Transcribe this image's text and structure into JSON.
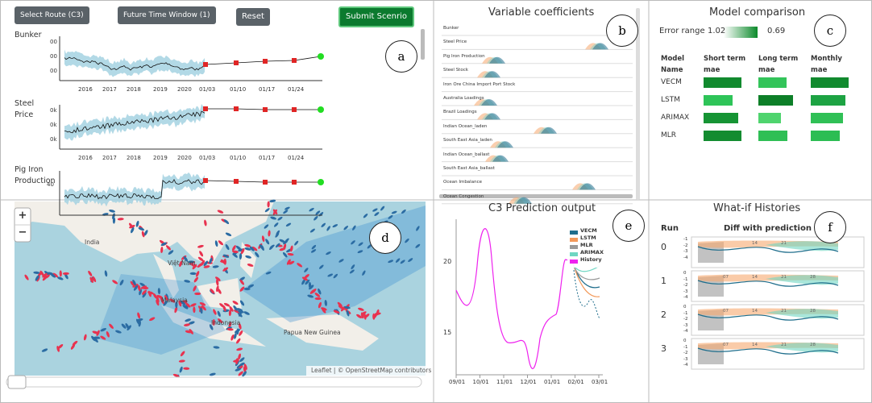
{
  "panel_a": {
    "label": "a",
    "buttons": {
      "route": "Select Route (C3)",
      "window": "Future Time Window (1)",
      "reset": "Reset",
      "submit": "Submit Scenrio"
    },
    "charts": [
      {
        "name": "Bunker",
        "yticks": [
          "00",
          "00",
          "00"
        ]
      },
      {
        "name": "Steel Price",
        "yticks": [
          "0k",
          "0k",
          "0k"
        ]
      },
      {
        "name": "Pig Iron Production",
        "yticks": [
          "40"
        ]
      }
    ],
    "xticks": [
      "2016",
      "2017",
      "2018",
      "2019",
      "2020",
      "01/03",
      "01/10",
      "01/17",
      "01/24"
    ]
  },
  "panel_b": {
    "label": "b",
    "title": "Variable coefficients",
    "variables": [
      "Bunker",
      "Steel Price",
      "Pig Iron Production",
      "Steel Stock",
      "Iron Ore China Import Port Stock",
      "Australia Loadings",
      "Brazil Loadings",
      "Indian Ocean_laden",
      "South East Asia_laden",
      "Indian Ocean_ballast",
      "South East Asia_ballast",
      "Ocean Imbalance",
      "Ocean Congestion"
    ]
  },
  "panel_c": {
    "label": "c",
    "title": "Model comparison",
    "error_range_label": "Error range",
    "error_max": 1.02,
    "error_min": 0.69,
    "headers": [
      "Model Name",
      "Short term mae",
      "Long term mae",
      "Monthly mae"
    ],
    "models": [
      "VECM",
      "LSTM",
      "ARIMAX",
      "MLR"
    ]
  },
  "panel_d": {
    "label": "d",
    "zoom_in": "+",
    "zoom_out": "−",
    "attribution": "Leaflet | © OpenStreetMap contributors",
    "places": [
      "India",
      "Việt Nam",
      "Malaysia",
      "Indonesia",
      "Papua New Guinea"
    ]
  },
  "panel_e": {
    "label": "e",
    "title": "C3 Prediction output",
    "yticks": [
      20,
      15
    ],
    "xticks": [
      "09/01",
      "10/01",
      "11/01",
      "12/01",
      "01/01",
      "02/01",
      "03/01"
    ],
    "legend": [
      {
        "name": "VECM",
        "color": "#1f6e8c"
      },
      {
        "name": "LSTM",
        "color": "#f39a5b"
      },
      {
        "name": "MLR",
        "color": "#9a9a9a"
      },
      {
        "name": "ARIMAX",
        "color": "#6fd6c2"
      },
      {
        "name": "History",
        "color": "#ee22ee"
      }
    ]
  },
  "panel_f": {
    "label": "f",
    "title": "What-if Histories",
    "headers": [
      "Run",
      "Diff with prediction"
    ],
    "runs": [
      0,
      1,
      2,
      3
    ],
    "yticks": [
      "0",
      "-1",
      "-2",
      "-3",
      "-4"
    ],
    "xticks": [
      "07",
      "14",
      "21",
      "28"
    ]
  }
}
